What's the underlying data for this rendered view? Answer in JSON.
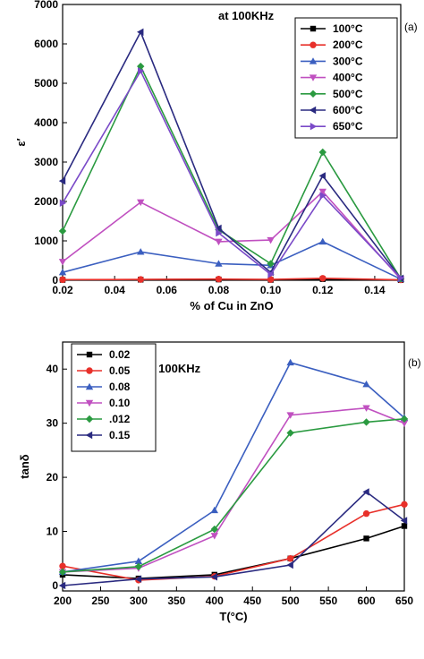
{
  "chart_data": [
    {
      "type": "line",
      "panel_label": "(a)",
      "annotation": "at 100KHz",
      "xlabel": "% of Cu in ZnO",
      "ylabel": "ε′",
      "xlim": [
        0.02,
        0.15
      ],
      "ylim": [
        0,
        7000
      ],
      "xticks": [
        "0.02",
        "0.04",
        "0.06",
        "0.08",
        "0.10",
        "0.12",
        "0.14"
      ],
      "xtick_values": [
        0.02,
        0.04,
        0.06,
        0.08,
        0.1,
        0.12,
        0.14
      ],
      "yticks": [
        "0",
        "1000",
        "2000",
        "3000",
        "4000",
        "5000",
        "6000",
        "7000"
      ],
      "ytick_values": [
        0,
        1000,
        2000,
        3000,
        4000,
        5000,
        6000,
        7000
      ],
      "legend_position": "top-right",
      "x": [
        0.02,
        0.05,
        0.08,
        0.1,
        0.12,
        0.15
      ],
      "series": [
        {
          "name": "100°C",
          "color": "#000000",
          "marker": "square",
          "values": [
            10,
            15,
            20,
            10,
            30,
            5
          ]
        },
        {
          "name": "200°C",
          "color": "#e8302a",
          "marker": "circle",
          "values": [
            15,
            20,
            30,
            20,
            50,
            10
          ]
        },
        {
          "name": "300°C",
          "color": "#3b5fc0",
          "marker": "triangle-up",
          "values": [
            200,
            720,
            420,
            380,
            980,
            30
          ]
        },
        {
          "name": "400°C",
          "color": "#c050c0",
          "marker": "triangle-down",
          "values": [
            470,
            1980,
            980,
            1020,
            2250,
            30
          ]
        },
        {
          "name": "500°C",
          "color": "#2a9a40",
          "marker": "diamond",
          "values": [
            1250,
            5430,
            1280,
            420,
            3250,
            40
          ]
        },
        {
          "name": "600°C",
          "color": "#2a2a80",
          "marker": "triangle-left",
          "values": [
            2520,
            6300,
            1320,
            200,
            2650,
            50
          ]
        },
        {
          "name": "650°C",
          "color": "#7a4ac8",
          "marker": "triangle-right",
          "values": [
            1960,
            5310,
            1200,
            150,
            2150,
            60
          ]
        }
      ]
    },
    {
      "type": "line",
      "panel_label": "(b)",
      "annotation": "at 100KHz",
      "xlabel": "T(°C)",
      "ylabel": "tanδ",
      "xlim": [
        200,
        650
      ],
      "ylim": [
        -1,
        45
      ],
      "xticks": [
        "200",
        "250",
        "300",
        "350",
        "400",
        "450",
        "500",
        "550",
        "600",
        "650"
      ],
      "xtick_values": [
        200,
        250,
        300,
        350,
        400,
        450,
        500,
        550,
        600,
        650
      ],
      "yticks": [
        "0",
        "10",
        "20",
        "30",
        "40"
      ],
      "ytick_values": [
        0,
        10,
        20,
        30,
        40
      ],
      "legend_position": "top-left",
      "x": [
        200,
        300,
        400,
        500,
        600,
        650
      ],
      "series": [
        {
          "name": "0.02",
          "color": "#000000",
          "marker": "square",
          "values": [
            2.0,
            1.3,
            2.0,
            5.0,
            8.7,
            11.0
          ]
        },
        {
          "name": "0.05",
          "color": "#e8302a",
          "marker": "circle",
          "values": [
            3.6,
            1.0,
            1.7,
            5.0,
            13.3,
            15.0
          ]
        },
        {
          "name": "0.08",
          "color": "#3b5fc0",
          "marker": "triangle-up",
          "values": [
            2.5,
            4.5,
            13.9,
            41.2,
            37.2,
            31.0
          ]
        },
        {
          "name": "0.10",
          "color": "#c050c0",
          "marker": "triangle-down",
          "values": [
            2.5,
            3.2,
            9.2,
            31.5,
            32.8,
            30.0
          ]
        },
        {
          "name": ".012",
          "color": "#2a9a40",
          "marker": "diamond",
          "values": [
            2.5,
            3.5,
            10.4,
            28.2,
            30.2,
            30.8
          ]
        },
        {
          "name": "0.15",
          "color": "#2a2a80",
          "marker": "triangle-left",
          "values": [
            0.0,
            1.2,
            1.6,
            3.8,
            17.3,
            12.0
          ]
        }
      ]
    }
  ]
}
